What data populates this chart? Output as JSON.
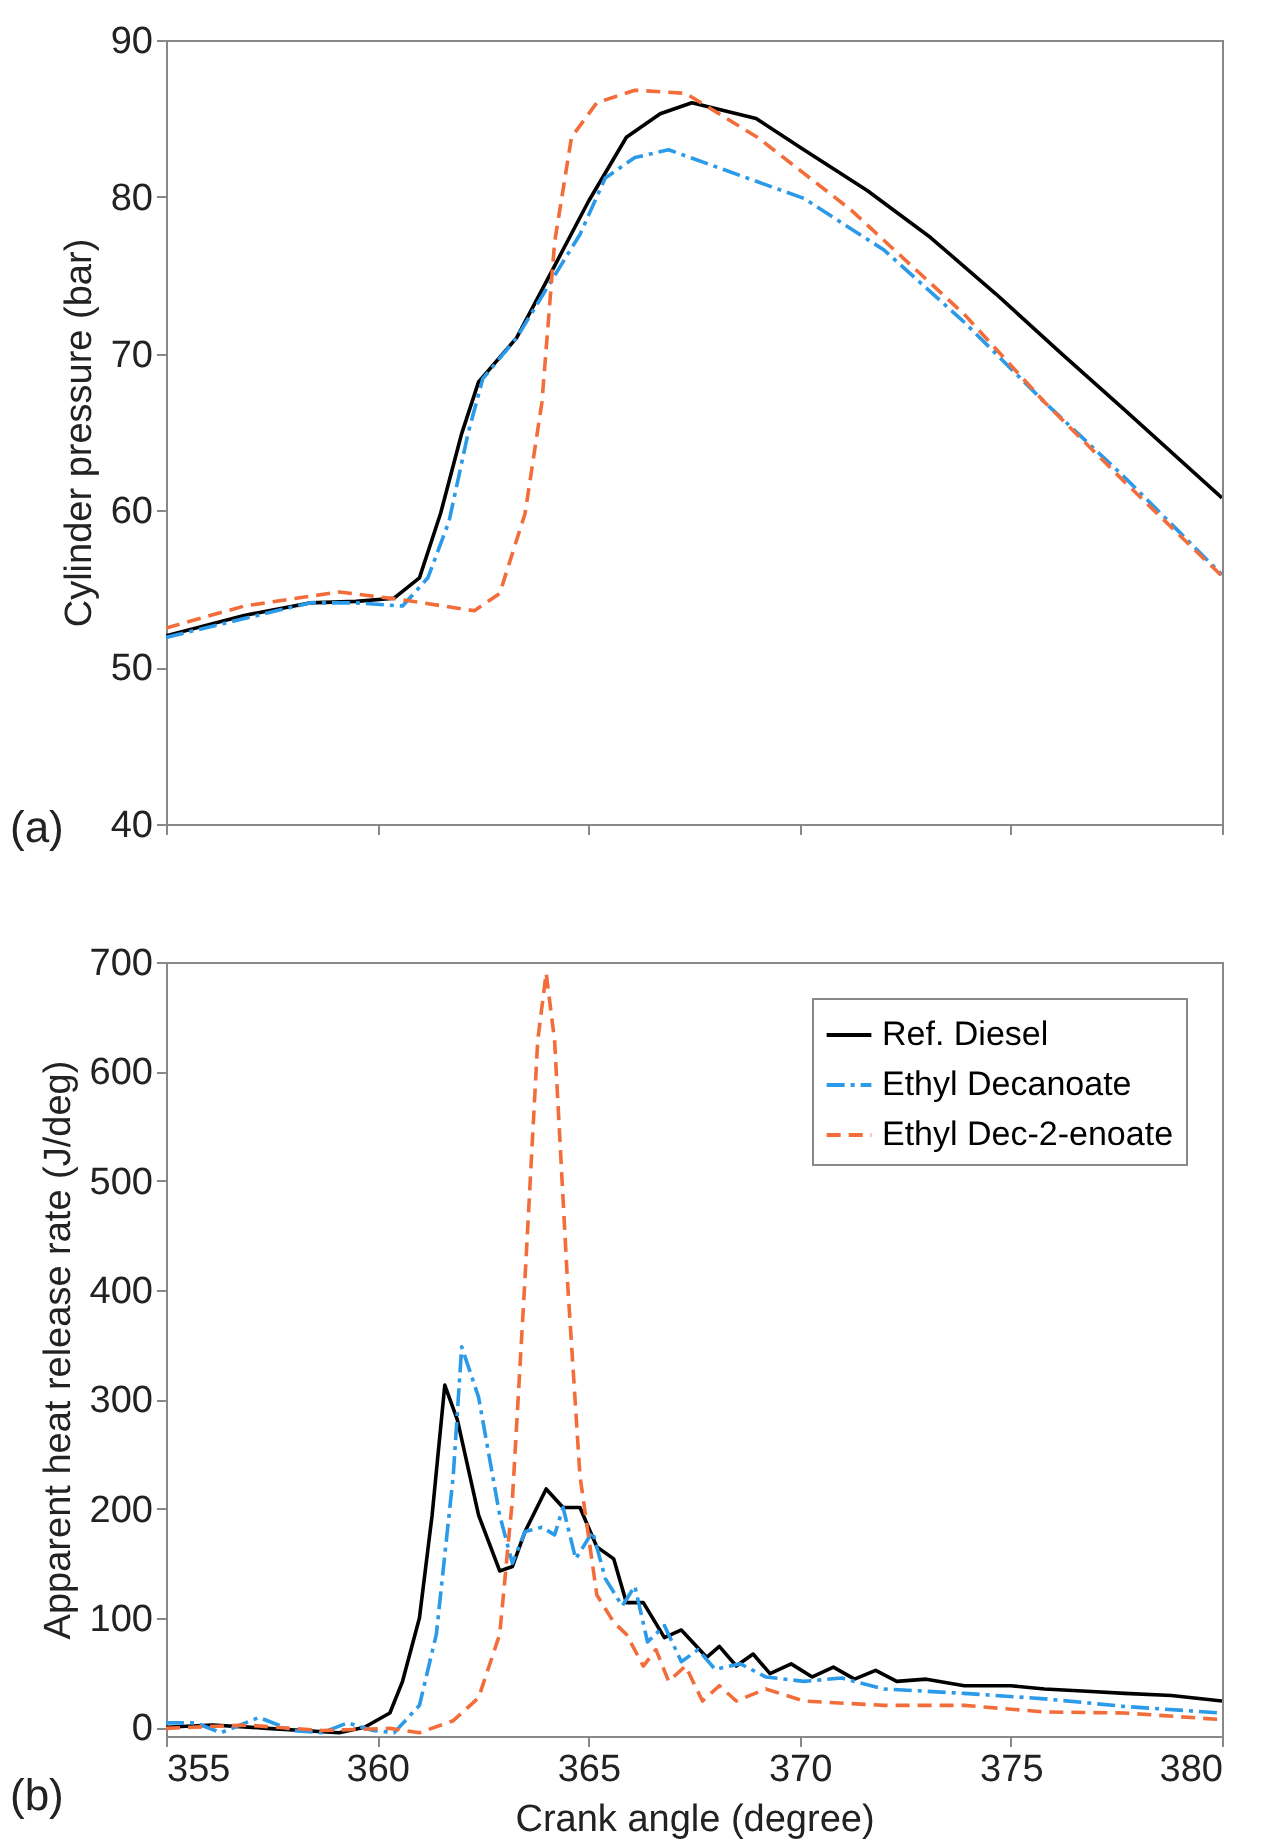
{
  "chart_data": [
    {
      "type": "line",
      "ylabel": "Cylinder pressure (bar)",
      "xlim": [
        355,
        380
      ],
      "xticks": [
        355,
        360,
        365,
        370,
        375,
        380
      ],
      "ylim": [
        40,
        90
      ],
      "yticks": [
        40,
        50,
        60,
        70,
        80,
        90
      ],
      "tick_labels": "y",
      "annotations": [
        "(a)"
      ],
      "series": [
        {
          "color": "#000000",
          "line_style": "solid",
          "x": [
            355,
            356.85,
            358.4,
            359.5,
            360.4,
            361.0,
            361.5,
            362.0,
            362.4,
            363.3,
            364.2,
            365.0,
            365.9,
            366.7,
            367.45,
            368.97,
            370.1,
            371.6,
            373.1,
            374.65,
            376.2,
            377.7,
            380
          ],
          "values": [
            52,
            53.3,
            54.1,
            54.2,
            54.4,
            55.7,
            59.8,
            64.9,
            68.2,
            71.0,
            75.6,
            79.7,
            83.8,
            85.3,
            86.0,
            85.0,
            83.0,
            80.4,
            77.4,
            73.8,
            70.0,
            66.4,
            60.8
          ]
        },
        {
          "color": "#2b9ae8",
          "line_style": "dashdot",
          "x": [
            355,
            356.85,
            358.4,
            359.5,
            360.6,
            361.2,
            361.7,
            362.15,
            362.5,
            363.3,
            364.0,
            364.8,
            365.4,
            366.1,
            366.9,
            370.1,
            372.0,
            373.9,
            375.8,
            377.7,
            380
          ],
          "values": [
            51.9,
            53.1,
            54.1,
            54.1,
            53.9,
            55.7,
            59.3,
            64.9,
            68.4,
            71.0,
            74.1,
            77.6,
            81.2,
            82.5,
            83.0,
            79.9,
            76.6,
            72.0,
            66.9,
            62.1,
            55.9
          ]
        },
        {
          "color": "#f36d3a",
          "line_style": "dashed",
          "x": [
            355,
            356.85,
            359.1,
            360.6,
            362.3,
            362.9,
            363.5,
            363.9,
            364.2,
            364.6,
            365.2,
            366.1,
            367.3,
            369.0,
            371.2,
            373.9,
            375.8,
            377.7,
            380
          ],
          "values": [
            52.5,
            53.9,
            54.8,
            54.3,
            53.6,
            54.7,
            59.8,
            66.9,
            77.1,
            83.8,
            86.0,
            86.8,
            86.6,
            83.8,
            79.2,
            72.5,
            66.9,
            61.8,
            55.8
          ]
        }
      ]
    },
    {
      "type": "line",
      "xlabel": "Crank angle (degree)",
      "ylabel": "Apparent heat release rate (J/deg)",
      "xlim": [
        355,
        380
      ],
      "xticks": [
        355,
        360,
        365,
        370,
        375,
        380
      ],
      "ylim": [
        -8,
        700
      ],
      "yticks": [
        0,
        100,
        200,
        300,
        400,
        500,
        600,
        700
      ],
      "legend": "top right",
      "annotations": [
        "(b)"
      ],
      "series": [
        {
          "name": "Ref. Diesel",
          "color": "#000000",
          "line_style": "solid",
          "x": [
            355,
            356.1,
            357.4,
            359.1,
            359.7,
            360.3,
            360.6,
            361.0,
            361.3,
            361.6,
            361.9,
            362.4,
            362.9,
            363.2,
            363.5,
            364.0,
            364.4,
            364.8,
            365.2,
            365.6,
            365.9,
            366.3,
            366.8,
            367.2,
            367.8,
            368.1,
            368.5,
            368.9,
            369.3,
            369.8,
            370.3,
            370.8,
            371.3,
            371.8,
            372.3,
            373.0,
            373.9,
            375.0,
            375.8,
            376.8,
            377.7,
            378.8,
            380
          ],
          "values": [
            0,
            2,
            -1,
            -5,
            0,
            13,
            42,
            100,
            194,
            313,
            281,
            194,
            143,
            147,
            179,
            218,
            201,
            201,
            165,
            154,
            114,
            114,
            82,
            89,
            64,
            74,
            56,
            67,
            49,
            58,
            46,
            55,
            44,
            52,
            42,
            44,
            38,
            38,
            35,
            33,
            31,
            29,
            24
          ]
        },
        {
          "name": "Ethyl Decanoate",
          "color": "#2b9ae8",
          "line_style": "dashdot",
          "x": [
            355,
            355.7,
            356.3,
            357.2,
            358.0,
            358.7,
            359.3,
            359.9,
            360.4,
            361.0,
            361.4,
            361.8,
            362.0,
            362.4,
            362.9,
            363.2,
            363.5,
            363.9,
            364.2,
            364.4,
            364.7,
            365.1,
            365.4,
            365.8,
            366.1,
            366.4,
            366.8,
            367.2,
            367.6,
            368.0,
            368.6,
            369.2,
            370.1,
            371.0,
            372.0,
            373.9,
            375.8,
            377.7,
            380
          ],
          "values": [
            4,
            4,
            -5,
            9,
            -3,
            -5,
            4,
            -3,
            -5,
            20,
            85,
            230,
            348,
            302,
            194,
            150,
            179,
            183,
            176,
            201,
            154,
            179,
            136,
            111,
            129,
            78,
            93,
            60,
            71,
            53,
            58,
            46,
            42,
            45,
            35,
            31,
            26,
            19,
            13
          ]
        },
        {
          "name": "Ethyl Dec-2-enoate",
          "color": "#f36d3a",
          "line_style": "dashed",
          "x": [
            355,
            356.9,
            358.7,
            360.3,
            361.0,
            361.8,
            362.4,
            362.9,
            363.2,
            363.5,
            363.8,
            364.0,
            364.2,
            364.5,
            364.8,
            365.2,
            365.6,
            365.9,
            366.3,
            366.6,
            366.9,
            367.3,
            367.7,
            368.1,
            368.5,
            369.2,
            370.1,
            372.0,
            373.9,
            375.8,
            377.7,
            380
          ],
          "values": [
            -1,
            2,
            -3,
            -1,
            -5,
            6,
            27,
            85,
            208,
            411,
            628,
            690,
            628,
            411,
            230,
            121,
            96,
            85,
            56,
            71,
            42,
            56,
            24,
            38,
            24,
            35,
            24,
            20,
            20,
            14,
            13,
            7
          ]
        }
      ]
    }
  ]
}
